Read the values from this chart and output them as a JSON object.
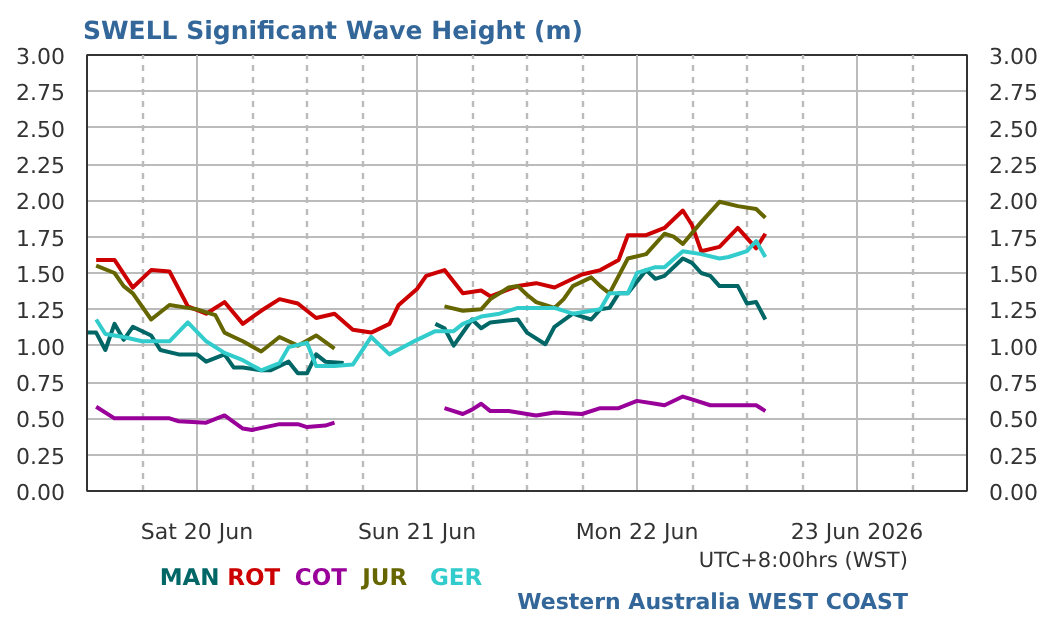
{
  "chart_data": {
    "type": "line",
    "title": "SWELL Significant Wave Height (m)",
    "xlim": [
      "2026-06-19T12:00",
      "2026-06-23T12:00"
    ],
    "xticks": [
      {
        "value": "2026-06-19T18:00",
        "label": null
      },
      {
        "value": "2026-06-20T00:00",
        "label": "Sat 20 Jun"
      },
      {
        "value": "2026-06-20T06:00",
        "label": null
      },
      {
        "value": "2026-06-20T12:00",
        "label": null
      },
      {
        "value": "2026-06-20T18:00",
        "label": null
      },
      {
        "value": "2026-06-21T00:00",
        "label": "Sun 21 Jun"
      },
      {
        "value": "2026-06-21T06:00",
        "label": null
      },
      {
        "value": "2026-06-21T12:00",
        "label": null
      },
      {
        "value": "2026-06-21T18:00",
        "label": null
      },
      {
        "value": "2026-06-22T00:00",
        "label": "Mon 22 Jun"
      },
      {
        "value": "2026-06-22T06:00",
        "label": null
      },
      {
        "value": "2026-06-22T12:00",
        "label": null
      },
      {
        "value": "2026-06-22T18:00",
        "label": null
      },
      {
        "value": "2026-06-23T00:00",
        "label": "23 Jun 2026"
      },
      {
        "value": "2026-06-23T06:00",
        "label": null
      }
    ],
    "ylim": [
      0,
      3
    ],
    "yticks": [
      {
        "value": 0,
        "label": "0.00"
      },
      {
        "value": 0.25,
        "label": "0.25"
      },
      {
        "value": 0.5,
        "label": "0.50"
      },
      {
        "value": 0.75,
        "label": "0.75"
      },
      {
        "value": 1,
        "label": "1.00"
      },
      {
        "value": 1.25,
        "label": "1.25"
      },
      {
        "value": 1.5,
        "label": "1.50"
      },
      {
        "value": 1.75,
        "label": "1.75"
      },
      {
        "value": 2,
        "label": "2.00"
      },
      {
        "value": 2.25,
        "label": "2.25"
      },
      {
        "value": 2.5,
        "label": "2.50"
      },
      {
        "value": 2.75,
        "label": "2.75"
      },
      {
        "value": 3,
        "label": "3.00"
      }
    ],
    "y2lim": [
      0,
      3
    ],
    "y2ticks": [
      {
        "value": 0,
        "label": "0.00"
      },
      {
        "value": 0.25,
        "label": "0.25"
      },
      {
        "value": 0.5,
        "label": "0.50"
      },
      {
        "value": 0.75,
        "label": "0.75"
      },
      {
        "value": 1,
        "label": "1.00"
      },
      {
        "value": 1.25,
        "label": "1.25"
      },
      {
        "value": 1.5,
        "label": "1.50"
      },
      {
        "value": 1.75,
        "label": "1.75"
      },
      {
        "value": 2,
        "label": "2.00"
      },
      {
        "value": 2.25,
        "label": "2.25"
      },
      {
        "value": 2.5,
        "label": "2.50"
      },
      {
        "value": 2.75,
        "label": "2.75"
      },
      {
        "value": 3,
        "label": "3.00"
      }
    ],
    "grid": true,
    "line_style": "solid",
    "annotations": [
      "UTC+8:00hrs (WST)",
      "Western Australia WEST COAST"
    ],
    "series": [
      {
        "name": "MAN",
        "color": "#006666",
        "x": [
          "2026-06-19T12:00",
          "2026-06-19T13:00",
          "2026-06-19T14:00",
          "2026-06-19T15:00",
          "2026-06-19T16:00",
          "2026-06-19T17:00",
          "2026-06-19T19:00",
          "2026-06-19T20:00",
          "2026-06-19T22:00",
          "2026-06-20T00:00",
          "2026-06-20T01:00",
          "2026-06-20T03:00",
          "2026-06-20T04:00",
          "2026-06-20T05:00",
          "2026-06-20T07:00",
          "2026-06-20T08:00",
          "2026-06-20T10:00",
          "2026-06-20T11:00",
          "2026-06-20T12:00",
          "2026-06-20T13:00",
          "2026-06-20T14:00",
          "2026-06-20T16:00",
          "2026-06-20T22:00",
          "2026-06-21T02:00",
          "2026-06-21T03:00",
          "2026-06-21T04:00",
          "2026-06-21T06:00",
          "2026-06-21T07:00",
          "2026-06-21T08:00",
          "2026-06-21T11:00",
          "2026-06-21T12:00",
          "2026-06-21T14:00",
          "2026-06-21T15:00",
          "2026-06-21T17:00",
          "2026-06-21T19:00",
          "2026-06-21T20:00",
          "2026-06-21T21:00",
          "2026-06-21T22:00",
          "2026-06-21T23:00",
          "2026-06-22T01:00",
          "2026-06-22T02:00",
          "2026-06-22T03:00",
          "2026-06-22T05:00",
          "2026-06-22T06:00",
          "2026-06-22T07:00",
          "2026-06-22T08:00",
          "2026-06-22T09:00",
          "2026-06-22T11:00",
          "2026-06-22T12:00",
          "2026-06-22T13:00",
          "2026-06-22T14:00"
        ],
        "values": [
          1.09,
          1.09,
          0.97,
          1.15,
          1.04,
          1.13,
          1.07,
          0.97,
          0.94,
          0.94,
          0.89,
          0.94,
          0.85,
          0.85,
          0.83,
          0.83,
          0.89,
          0.81,
          0.81,
          0.94,
          0.89,
          0.88,
          null,
          1.15,
          1.12,
          1.0,
          1.18,
          1.12,
          1.16,
          1.18,
          1.09,
          1.01,
          1.13,
          1.22,
          1.18,
          1.25,
          1.26,
          1.36,
          1.36,
          1.52,
          1.46,
          1.48,
          1.6,
          1.57,
          1.5,
          1.48,
          1.41,
          1.41,
          1.29,
          1.3,
          1.18
        ]
      },
      {
        "name": "ROT",
        "color": "#cc0000",
        "x": [
          "2026-06-19T13:00",
          "2026-06-19T15:00",
          "2026-06-19T17:00",
          "2026-06-19T19:00",
          "2026-06-19T21:00",
          "2026-06-19T23:00",
          "2026-06-20T01:00",
          "2026-06-20T03:00",
          "2026-06-20T05:00",
          "2026-06-20T07:00",
          "2026-06-20T09:00",
          "2026-06-20T11:00",
          "2026-06-20T13:00",
          "2026-06-20T15:00",
          "2026-06-20T17:00",
          "2026-06-20T19:00",
          "2026-06-20T21:00",
          "2026-06-20T22:00",
          "2026-06-21T00:00",
          "2026-06-21T01:00",
          "2026-06-21T03:00",
          "2026-06-21T05:00",
          "2026-06-21T07:00",
          "2026-06-21T08:00",
          "2026-06-21T11:00",
          "2026-06-21T13:00",
          "2026-06-21T15:00",
          "2026-06-21T17:00",
          "2026-06-21T18:00",
          "2026-06-21T20:00",
          "2026-06-21T22:00",
          "2026-06-21T23:00",
          "2026-06-22T01:00",
          "2026-06-22T03:00",
          "2026-06-22T05:00",
          "2026-06-22T06:00",
          "2026-06-22T07:00",
          "2026-06-22T09:00",
          "2026-06-22T11:00",
          "2026-06-22T13:00",
          "2026-06-22T14:00"
        ],
        "values": [
          1.59,
          1.59,
          1.4,
          1.52,
          1.51,
          1.27,
          1.22,
          1.3,
          1.15,
          1.24,
          1.32,
          1.29,
          1.19,
          1.22,
          1.11,
          1.09,
          1.15,
          1.28,
          1.39,
          1.48,
          1.52,
          1.36,
          1.38,
          1.34,
          1.41,
          1.43,
          1.4,
          1.46,
          1.49,
          1.52,
          1.59,
          1.76,
          1.76,
          1.81,
          1.93,
          1.83,
          1.65,
          1.68,
          1.81,
          1.67,
          1.77
        ]
      },
      {
        "name": "COT",
        "color": "#990099",
        "x": [
          "2026-06-19T13:00",
          "2026-06-19T15:00",
          "2026-06-19T17:00",
          "2026-06-19T21:00",
          "2026-06-19T22:00",
          "2026-06-20T01:00",
          "2026-06-20T03:00",
          "2026-06-20T05:00",
          "2026-06-20T06:00",
          "2026-06-20T09:00",
          "2026-06-20T11:00",
          "2026-06-20T12:00",
          "2026-06-20T14:00",
          "2026-06-20T15:00",
          "2026-06-20T22:00",
          "2026-06-21T03:00",
          "2026-06-21T05:00",
          "2026-06-21T06:00",
          "2026-06-21T07:00",
          "2026-06-21T08:00",
          "2026-06-21T10:00",
          "2026-06-21T13:00",
          "2026-06-21T15:00",
          "2026-06-21T18:00",
          "2026-06-21T20:00",
          "2026-06-21T22:00",
          "2026-06-22T00:00",
          "2026-06-22T02:00",
          "2026-06-22T03:00",
          "2026-06-22T05:00",
          "2026-06-22T06:00",
          "2026-06-22T08:00",
          "2026-06-22T10:00",
          "2026-06-22T13:00",
          "2026-06-22T14:00"
        ],
        "values": [
          0.58,
          0.5,
          0.5,
          0.5,
          0.48,
          0.47,
          0.52,
          0.43,
          0.42,
          0.46,
          0.46,
          0.44,
          0.45,
          0.47,
          null,
          0.57,
          0.53,
          0.56,
          0.6,
          0.55,
          0.55,
          0.52,
          0.54,
          0.53,
          0.57,
          0.57,
          0.62,
          0.6,
          0.59,
          0.65,
          0.63,
          0.59,
          0.59,
          0.59,
          0.55
        ]
      },
      {
        "name": "JUR",
        "color": "#666600",
        "x": [
          "2026-06-19T13:00",
          "2026-06-19T15:00",
          "2026-06-19T16:00",
          "2026-06-19T17:00",
          "2026-06-19T19:00",
          "2026-06-19T21:00",
          "2026-06-19T23:00",
          "2026-06-20T00:00",
          "2026-06-20T02:00",
          "2026-06-20T03:00",
          "2026-06-20T04:00",
          "2026-06-20T05:00",
          "2026-06-20T07:00",
          "2026-06-20T09:00",
          "2026-06-20T10:00",
          "2026-06-20T11:00",
          "2026-06-20T13:00",
          "2026-06-20T15:00",
          "2026-06-20T22:00",
          "2026-06-21T03:00",
          "2026-06-21T05:00",
          "2026-06-21T07:00",
          "2026-06-21T08:00",
          "2026-06-21T10:00",
          "2026-06-21T11:00",
          "2026-06-21T12:00",
          "2026-06-21T13:00",
          "2026-06-21T15:00",
          "2026-06-21T16:00",
          "2026-06-21T17:00",
          "2026-06-21T19:00",
          "2026-06-21T20:00",
          "2026-06-21T21:00",
          "2026-06-21T23:00",
          "2026-06-22T01:00",
          "2026-06-22T03:00",
          "2026-06-22T04:00",
          "2026-06-22T05:00",
          "2026-06-22T07:00",
          "2026-06-22T09:00",
          "2026-06-22T11:00",
          "2026-06-22T13:00",
          "2026-06-22T14:00"
        ],
        "values": [
          1.55,
          1.5,
          1.41,
          1.36,
          1.18,
          1.28,
          1.26,
          1.25,
          1.21,
          1.09,
          1.06,
          1.03,
          0.96,
          1.06,
          1.03,
          1.0,
          1.07,
          0.98,
          null,
          1.27,
          1.24,
          1.25,
          1.32,
          1.4,
          1.41,
          1.35,
          1.3,
          1.26,
          1.32,
          1.41,
          1.47,
          1.41,
          1.36,
          1.6,
          1.63,
          1.77,
          1.75,
          1.7,
          1.85,
          1.99,
          1.96,
          1.94,
          1.88
        ]
      },
      {
        "name": "GER",
        "color": "#33cccc",
        "x": [
          "2026-06-19T13:00",
          "2026-06-19T14:00",
          "2026-06-19T16:00",
          "2026-06-19T18:00",
          "2026-06-19T21:00",
          "2026-06-19T23:00",
          "2026-06-20T01:00",
          "2026-06-20T03:00",
          "2026-06-20T05:00",
          "2026-06-20T07:00",
          "2026-06-20T09:00",
          "2026-06-20T10:00",
          "2026-06-20T12:00",
          "2026-06-20T13:00",
          "2026-06-20T15:00",
          "2026-06-20T17:00",
          "2026-06-20T19:00",
          "2026-06-20T21:00",
          "2026-06-21T00:00",
          "2026-06-21T02:00",
          "2026-06-21T04:00",
          "2026-06-21T05:00",
          "2026-06-21T07:00",
          "2026-06-21T09:00",
          "2026-06-21T11:00",
          "2026-06-21T13:00",
          "2026-06-21T15:00",
          "2026-06-21T17:00",
          "2026-06-21T20:00",
          "2026-06-21T21:00",
          "2026-06-21T23:00",
          "2026-06-22T00:00",
          "2026-06-22T02:00",
          "2026-06-22T03:00",
          "2026-06-22T05:00",
          "2026-06-22T07:00",
          "2026-06-22T09:00",
          "2026-06-22T10:00",
          "2026-06-22T12:00",
          "2026-06-22T13:00",
          "2026-06-22T14:00"
        ],
        "values": [
          1.18,
          1.08,
          1.06,
          1.03,
          1.03,
          1.16,
          1.03,
          0.95,
          0.9,
          0.83,
          0.88,
          0.99,
          1.02,
          0.86,
          0.86,
          0.87,
          1.06,
          0.94,
          1.04,
          1.1,
          1.1,
          1.15,
          1.2,
          1.22,
          1.26,
          1.26,
          1.26,
          1.22,
          1.25,
          1.36,
          1.36,
          1.5,
          1.54,
          1.54,
          1.65,
          1.63,
          1.6,
          1.61,
          1.65,
          1.72,
          1.61
        ]
      }
    ]
  }
}
